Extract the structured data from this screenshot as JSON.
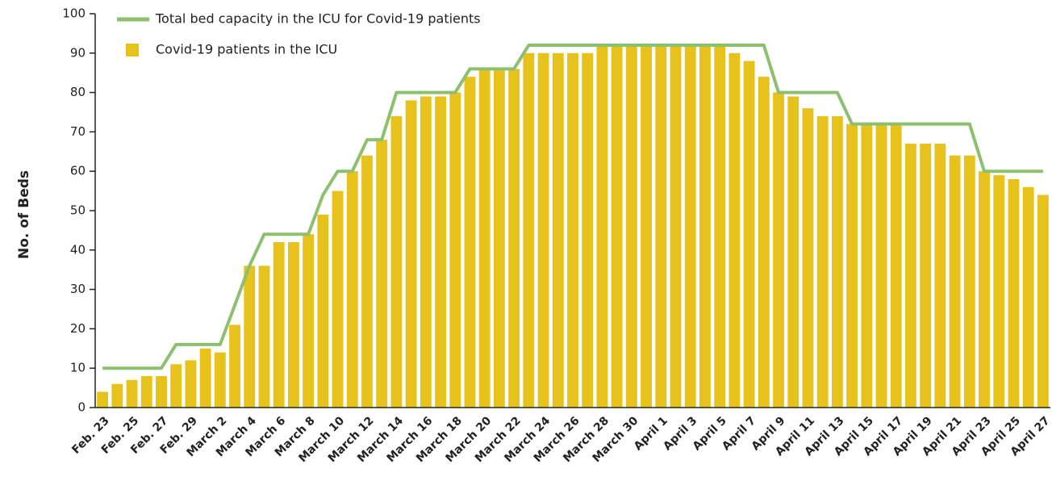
{
  "chart_data": {
    "type": "bar",
    "y_label": "No. of Beds",
    "categories": [
      "Feb. 23",
      null,
      "Feb. 25",
      null,
      "Feb. 27",
      null,
      "Feb. 29",
      null,
      "March 2",
      null,
      "March 4",
      null,
      "March 6",
      null,
      "March 8",
      null,
      "March 10",
      null,
      "March 12",
      null,
      "March 14",
      null,
      "March 16",
      null,
      "March 18",
      null,
      "March 20",
      null,
      "March 22",
      null,
      "March 24",
      null,
      "March 26",
      null,
      "March 28",
      null,
      "March 30",
      null,
      "April 1",
      null,
      "April 3",
      null,
      "April 5",
      null,
      "April 7",
      null,
      "April 9",
      null,
      "April 11",
      null,
      "April 13",
      null,
      "April 15",
      null,
      "April 17",
      null,
      "April 19",
      null,
      "April 21",
      null,
      "April 23",
      null,
      "April 25",
      null,
      "April 27"
    ],
    "series": [
      {
        "name": "Total bed capacity in the ICU for Covid-19 patients",
        "type": "line",
        "color": "#8dc06e",
        "values": [
          10,
          10,
          10,
          10,
          10,
          16,
          16,
          16,
          16,
          26,
          36,
          44,
          44,
          44,
          44,
          54,
          60,
          60,
          68,
          68,
          80,
          80,
          80,
          80,
          80,
          86,
          86,
          86,
          86,
          92,
          92,
          92,
          92,
          92,
          92,
          92,
          92,
          92,
          92,
          92,
          92,
          92,
          92,
          92,
          92,
          92,
          80,
          80,
          80,
          80,
          80,
          72,
          72,
          72,
          72,
          72,
          72,
          72,
          72,
          72,
          60,
          60,
          60,
          60,
          60
        ]
      },
      {
        "name": "Covid-19 patients in the ICU",
        "type": "bar",
        "color": "#e8c21c",
        "values": [
          4,
          6,
          7,
          8,
          8,
          11,
          12,
          15,
          14,
          21,
          36,
          36,
          42,
          42,
          44,
          49,
          55,
          60,
          64,
          68,
          74,
          78,
          79,
          79,
          80,
          84,
          86,
          86,
          86,
          90,
          90,
          90,
          90,
          90,
          92,
          92,
          92,
          92,
          92,
          92,
          92,
          92,
          92,
          90,
          88,
          84,
          80,
          79,
          76,
          74,
          74,
          72,
          72,
          72,
          72,
          67,
          67,
          67,
          64,
          64,
          60,
          59,
          58,
          56,
          54
        ]
      }
    ],
    "ylim": [
      0,
      100
    ],
    "yticks": [
      0,
      10,
      20,
      30,
      40,
      50,
      60,
      70,
      80,
      90,
      100
    ]
  }
}
